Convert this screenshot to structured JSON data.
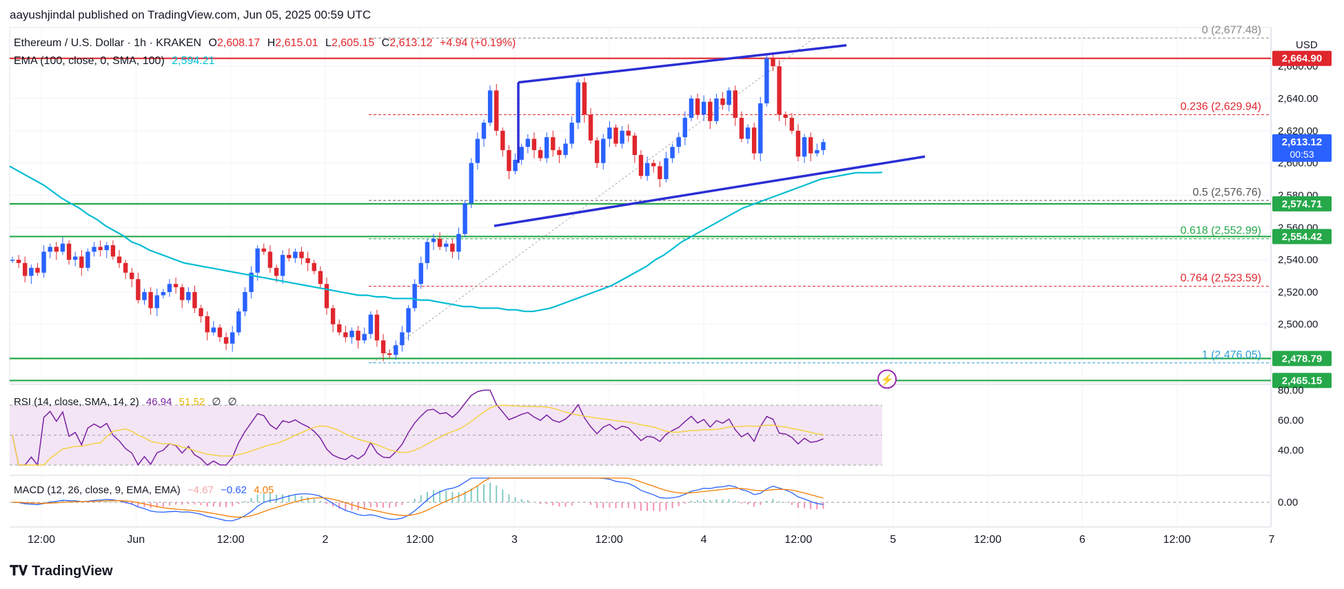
{
  "header": "aayushjindal published on TradingView.com, Jun 05, 2025 00:59 UTC",
  "footer": "TradingView",
  "colors": {
    "up": "#2962ff",
    "down": "#e0262d",
    "ema": "#00bcd4",
    "support": "#26a84a",
    "resistance": "#e0262d",
    "rsi": "#7b1fa2",
    "rsi_ma": "#f5d142",
    "macd": "#2962ff",
    "signal": "#f57c00"
  },
  "legend": {
    "symbol": "Ethereum / U.S. Dollar · 1h · KRAKEN",
    "o_label": "O",
    "o": "2,608.17",
    "h_label": "H",
    "h": "2,615.01",
    "l_label": "L",
    "l": "2,605.15",
    "c_label": "C",
    "c": "2,613.12",
    "change": "+4.94 (+0.19%)",
    "ema_label": "EMA (100, close, 0, SMA, 100)",
    "ema_value": "2,594.21"
  },
  "rsi_legend": {
    "label": "RSI (14, close, SMA, 14, 2)",
    "v1": "46.94",
    "v2": "51.52",
    "v3": "∅",
    "v4": "∅"
  },
  "macd_legend": {
    "label": "MACD (12, 26, close, 9, EMA, EMA)",
    "v1": "−4.67",
    "v2": "−0.62",
    "v3": "4.05"
  },
  "chart_data": {
    "type": "candlestick",
    "currency": "USD",
    "y_ticks": [
      "2,500.00",
      "2,520.00",
      "2,540.00",
      "2,560.00",
      "2,580.00",
      "2,600.00",
      "2,620.00",
      "2,640.00",
      "2,660.00"
    ],
    "ylim": [
      2464,
      2684
    ],
    "x_ticks": [
      "12:00",
      "Jun",
      "12:00",
      "2",
      "12:00",
      "3",
      "12:00",
      "4",
      "12:00",
      "5",
      "12:00",
      "6",
      "12:00",
      "7"
    ],
    "price_labels": [
      {
        "value": 2664.9,
        "text": "2,664.90",
        "color": "#e0262d"
      },
      {
        "value": 2613.12,
        "text": "2,613.12",
        "sub": "00:53",
        "color": "#2962ff"
      },
      {
        "value": 2574.71,
        "text": "2,574.71",
        "color": "#26a84a"
      },
      {
        "value": 2554.42,
        "text": "2,554.42",
        "color": "#26a84a"
      },
      {
        "value": 2478.79,
        "text": "2,478.79",
        "color": "#26a84a"
      },
      {
        "value": 2465.15,
        "text": "2,465.15",
        "color": "#26a84a"
      }
    ],
    "horizontal_lines": [
      {
        "value": 2664.9,
        "color": "#e0262d"
      },
      {
        "value": 2574.71,
        "color": "#26a84a"
      },
      {
        "value": 2554.42,
        "color": "#26a84a"
      },
      {
        "value": 2478.79,
        "color": "#26a84a"
      },
      {
        "value": 2465.15,
        "color": "#26a84a"
      }
    ],
    "fibonacci": [
      {
        "level": "0",
        "value": 2677.48,
        "text": "0 (2,677.48)",
        "color": "#888888"
      },
      {
        "level": "0.236",
        "value": 2629.94,
        "text": "0.236 (2,629.94)",
        "color": "#e0262d"
      },
      {
        "level": "0.5",
        "value": 2576.76,
        "text": "0.5 (2,576.76)",
        "color": "#555555"
      },
      {
        "level": "0.618",
        "value": 2552.99,
        "text": "0.618 (2,552.99)",
        "color": "#26a84a"
      },
      {
        "level": "0.764",
        "value": 2523.59,
        "text": "0.764 (2,523.59)",
        "color": "#e0262d"
      },
      {
        "level": "1",
        "value": 2476.05,
        "text": "1 (2,476.05)",
        "color": "#2a9fd6"
      }
    ],
    "close_prices": [
      2540,
      2538,
      2530,
      2535,
      2532,
      2545,
      2548,
      2545,
      2550,
      2540,
      2542,
      2535,
      2545,
      2548,
      2546,
      2549,
      2542,
      2538,
      2532,
      2528,
      2515,
      2520,
      2510,
      2518,
      2520,
      2525,
      2523,
      2515,
      2520,
      2510,
      2505,
      2495,
      2498,
      2492,
      2488,
      2495,
      2508,
      2520,
      2532,
      2547,
      2545,
      2535,
      2530,
      2543,
      2541,
      2545,
      2541,
      2538,
      2533,
      2525,
      2510,
      2500,
      2495,
      2492,
      2496,
      2490,
      2494,
      2506,
      2490,
      2482,
      2481,
      2487,
      2495,
      2510,
      2525,
      2538,
      2551,
      2553,
      2548,
      2550,
      2545,
      2556,
      2575,
      2600,
      2615,
      2625,
      2645,
      2620,
      2608,
      2595,
      2602,
      2610,
      2615,
      2608,
      2603,
      2616,
      2608,
      2605,
      2612,
      2625,
      2650,
      2630,
      2614,
      2600,
      2615,
      2622,
      2612,
      2620,
      2617,
      2605,
      2592,
      2600,
      2598,
      2590,
      2603,
      2610,
      2616,
      2628,
      2640,
      2630,
      2638,
      2626,
      2640,
      2636,
      2645,
      2628,
      2615,
      2622,
      2606,
      2637,
      2665,
      2660,
      2630,
      2628,
      2620,
      2604,
      2616,
      2606,
      2608,
      2613
    ],
    "ema_values": [
      2598,
      2595,
      2592,
      2589,
      2586,
      2582,
      2578,
      2575,
      2572,
      2568,
      2565,
      2561,
      2558,
      2555,
      2551,
      2549,
      2546,
      2544,
      2542,
      2540,
      2538,
      2537,
      2536,
      2535,
      2534,
      2533,
      2532,
      2531,
      2530,
      2529,
      2528,
      2527,
      2526,
      2525,
      2524,
      2523,
      2522,
      2521,
      2520,
      2519,
      2518,
      2518,
      2517,
      2517,
      2516,
      2516,
      2516,
      2515,
      2515,
      2514,
      2513,
      2512,
      2511,
      2511,
      2510,
      2510,
      2510,
      2509,
      2509,
      2508,
      2508,
      2509,
      2510,
      2512,
      2514,
      2516,
      2518,
      2520,
      2522,
      2524,
      2527,
      2530,
      2533,
      2536,
      2540,
      2543,
      2547,
      2551,
      2554,
      2557,
      2560,
      2563,
      2566,
      2569,
      2572,
      2574,
      2576,
      2578,
      2580,
      2582,
      2584,
      2586,
      2588,
      2590,
      2591,
      2592,
      2593,
      2594,
      2594,
      2594,
      2594.21
    ],
    "rsi": {
      "ylim": [
        25,
        82
      ],
      "ticks": [
        "80.00",
        "60.00",
        "40.00"
      ],
      "band": [
        30,
        70
      ],
      "mid": 50
    },
    "macd": {
      "ylim": [
        -14,
        15
      ],
      "ticks": [
        "0.00"
      ]
    }
  }
}
